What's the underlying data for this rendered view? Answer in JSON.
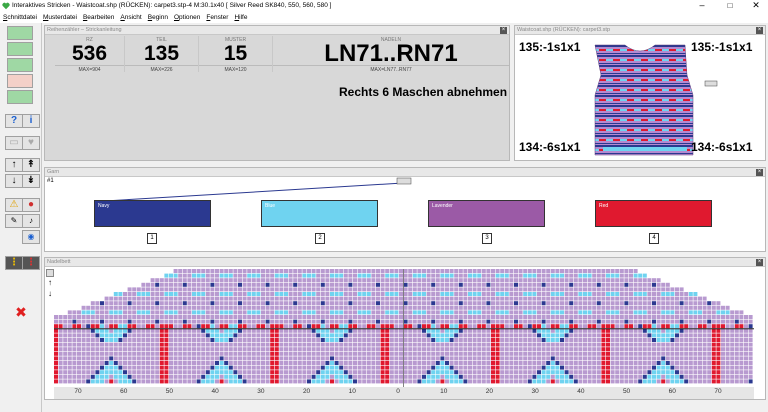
{
  "window": {
    "title": "Interaktives Stricken - Waistcoat.shp (RÜCKEN): carpet3.stp-4   M:30.1x40   [ Silver Reed SK840, 550, 560, 580 ]",
    "minimize": "–",
    "maximize": "□",
    "close": "✕"
  },
  "menu": [
    {
      "u": "S",
      "rest": "chnittdatei"
    },
    {
      "u": "M",
      "rest": "usterdatei"
    },
    {
      "u": "B",
      "rest": "earbeiten"
    },
    {
      "u": "A",
      "rest": "nsicht"
    },
    {
      "u": "B",
      "rest": "eginn"
    },
    {
      "u": "O",
      "rest": "ptionen"
    },
    {
      "u": "F",
      "rest": "enster"
    },
    {
      "u": "H",
      "rest": "ilfe"
    }
  ],
  "counters_panel": {
    "title": "Reihenzähler – Strickanleitung",
    "rz": {
      "label": "RZ",
      "value": "536",
      "max": "MAX=904"
    },
    "teil": {
      "label": "TEIL",
      "value": "135",
      "max": "MAX=226"
    },
    "muster": {
      "label": "MUSTER",
      "value": "15",
      "max": "MAX=120"
    },
    "nadeln": {
      "label": "NADELN",
      "value": "LN71..RN71",
      "max": "MAX=LN77..RN77"
    },
    "instruction": "Rechts 6 Maschen abnehmen"
  },
  "preview_panel": {
    "title": "Waistcoat.shp (RÜCKEN): carpet3.stp",
    "tl": "135:-1s1x1",
    "tr": "135:-1s1x1",
    "bl": "134:-6s1x1",
    "br": "134:-6s1x1"
  },
  "yarn_panel": {
    "title": "Garn",
    "row_label": "#1",
    "yarns": [
      {
        "name": "Navy",
        "num": "1",
        "color": "#2b3990"
      },
      {
        "name": "Blue",
        "num": "2",
        "color": "#6fd3f0"
      },
      {
        "name": "Lavender",
        "num": "3",
        "color": "#9b5aa6"
      },
      {
        "name": "Red",
        "num": "4",
        "color": "#e0192f"
      }
    ]
  },
  "needle_panel": {
    "title": "Nadelbett",
    "axis": [
      "70",
      "60",
      "50",
      "40",
      "30",
      "20",
      "10",
      "0",
      "10",
      "20",
      "30",
      "40",
      "50",
      "60",
      "70"
    ]
  },
  "colors": {
    "navy": "#2b3990",
    "blue": "#6fd3f0",
    "lavender": "#9b5aa6",
    "red": "#e0192f",
    "bg_purple": "#b89ad0"
  }
}
